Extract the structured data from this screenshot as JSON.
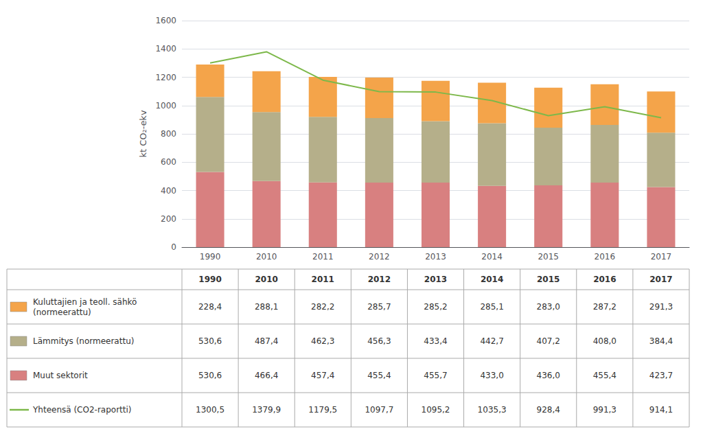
{
  "chart_data": {
    "type": "bar",
    "stacked": true,
    "grid": true,
    "ylabel": "kt CO₂-ekv",
    "categories": [
      "1990",
      "2010",
      "2011",
      "2012",
      "2013",
      "2014",
      "2015",
      "2016",
      "2017"
    ],
    "ylim": [
      0,
      1600
    ],
    "yticks": [
      0,
      200,
      400,
      600,
      800,
      1000,
      1200,
      1400,
      1600
    ],
    "series": [
      {
        "name": "Muut sektorit",
        "type": "bar",
        "color": "#D88080",
        "values": [
          530.6,
          466.4,
          457.4,
          455.4,
          455.7,
          433.0,
          436.0,
          455.4,
          423.7
        ],
        "value_labels": [
          "530,6",
          "466,4",
          "457,4",
          "455,4",
          "455,7",
          "433,0",
          "436,0",
          "455,4",
          "423,7"
        ]
      },
      {
        "name": "Lämmitys (normeerattu)",
        "type": "bar",
        "color": "#B5AF8A",
        "values": [
          530.6,
          487.4,
          462.3,
          456.3,
          433.4,
          442.7,
          407.2,
          408.0,
          384.4
        ],
        "value_labels": [
          "530,6",
          "487,4",
          "462,3",
          "456,3",
          "433,4",
          "442,7",
          "407,2",
          "408,0",
          "384,4"
        ]
      },
      {
        "name": "Kuluttajien ja teoll. sähkö\n(normeerattu)",
        "type": "bar",
        "color": "#F4A44A",
        "values": [
          228.4,
          288.1,
          282.2,
          285.7,
          285.2,
          285.1,
          283.0,
          287.2,
          291.3
        ],
        "value_labels": [
          "228,4",
          "288,1",
          "282,2",
          "285,7",
          "285,2",
          "285,1",
          "283,0",
          "287,2",
          "291,3"
        ]
      },
      {
        "name": "Yhteensä (CO2-raportti)",
        "type": "line",
        "color": "#7DB84A",
        "values": [
          1300.5,
          1379.9,
          1179.5,
          1097.7,
          1095.2,
          1035.3,
          928.4,
          991.3,
          914.1
        ],
        "value_labels": [
          "1300,5",
          "1379,9",
          "1179,5",
          "1097,7",
          "1095,2",
          "1035,3",
          "928,4",
          "991,3",
          "914,1"
        ]
      }
    ]
  }
}
